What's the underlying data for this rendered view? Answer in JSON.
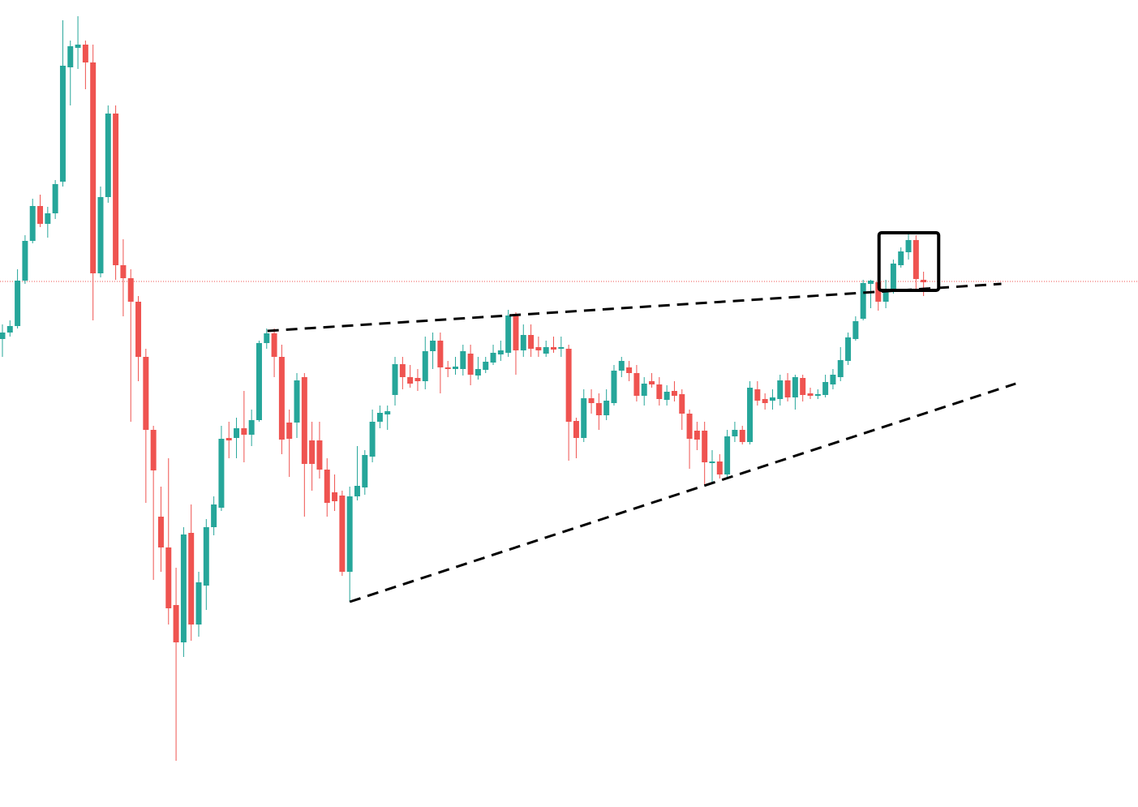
{
  "chart_data": {
    "type": "candlestick",
    "up_color": "#26a69a",
    "down_color": "#ef5350",
    "xlim": [
      -0.32,
      150.4
    ],
    "ylim": [
      0,
      995
    ],
    "open": [
      577,
      585,
      593,
      649,
      698,
      741,
      719,
      732,
      771,
      912,
      936,
      940,
      918,
      658,
      752,
      855,
      668,
      652,
      623,
      555,
      465,
      358,
      320,
      249,
      203,
      338,
      225,
      273,
      345,
      369,
      455,
      455,
      467,
      459,
      477,
      572,
      584,
      555,
      474,
      474,
      530,
      452,
      452,
      416,
      388,
      384,
      290,
      383,
      394,
      432,
      475,
      484,
      508,
      546,
      530,
      529,
      525,
      562,
      575,
      542,
      540,
      540,
      559,
      532,
      539,
      548,
      558,
      560,
      606,
      563,
      582,
      567,
      559,
      567,
      565,
      565,
      476,
      455,
      504,
      498,
      483,
      498,
      538,
      542,
      535,
      507,
      525,
      521,
      502,
      513,
      509,
      485,
      464,
      464,
      424,
      426,
      410,
      457,
      465,
      450,
      515,
      503,
      501,
      503,
      526,
      505,
      529,
      510,
      507,
      508,
      521,
      530,
      550,
      577,
      602,
      645,
      647,
      623,
      636,
      668,
      684,
      699,
      650
    ],
    "high": [
      595,
      600,
      663,
      705,
      750,
      755,
      740,
      773,
      970,
      945,
      975,
      945,
      940,
      765,
      865,
      865,
      700,
      663,
      630,
      565,
      470,
      395,
      430,
      295,
      345,
      373,
      290,
      355,
      383,
      470,
      475,
      480,
      513,
      490,
      575,
      590,
      590,
      570,
      490,
      535,
      535,
      475,
      475,
      430,
      410,
      390,
      395,
      445,
      440,
      490,
      495,
      495,
      555,
      555,
      545,
      540,
      580,
      585,
      585,
      550,
      555,
      570,
      570,
      555,
      555,
      570,
      575,
      613,
      610,
      595,
      595,
      580,
      575,
      580,
      580,
      570,
      480,
      515,
      515,
      510,
      515,
      545,
      555,
      550,
      545,
      530,
      535,
      530,
      520,
      525,
      515,
      490,
      475,
      475,
      440,
      435,
      465,
      475,
      470,
      525,
      525,
      510,
      515,
      533,
      535,
      533,
      533,
      517,
      515,
      533,
      540,
      567,
      585,
      605,
      650,
      650,
      653,
      650,
      675,
      690,
      707,
      705,
      660
    ],
    "low": [
      555,
      580,
      590,
      645,
      695,
      715,
      702,
      725,
      765,
      865,
      910,
      885,
      600,
      653,
      745,
      650,
      605,
      475,
      525,
      375,
      280,
      290,
      225,
      57,
      185,
      205,
      210,
      243,
      335,
      365,
      430,
      430,
      425,
      445,
      475,
      565,
      530,
      435,
      407,
      455,
      358,
      390,
      405,
      358,
      365,
      285,
      253,
      378,
      385,
      425,
      467,
      465,
      495,
      515,
      517,
      513,
      515,
      540,
      510,
      530,
      533,
      532,
      520,
      527,
      535,
      545,
      550,
      555,
      533,
      555,
      555,
      555,
      555,
      560,
      555,
      427,
      430,
      450,
      485,
      465,
      477,
      495,
      530,
      525,
      500,
      495,
      517,
      495,
      495,
      500,
      465,
      417,
      440,
      397,
      400,
      405,
      405,
      450,
      447,
      447,
      495,
      490,
      490,
      495,
      500,
      490,
      500,
      503,
      503,
      505,
      515,
      525,
      545,
      575,
      600,
      615,
      612,
      615,
      633,
      665,
      675,
      635,
      630
    ],
    "close": [
      585,
      593,
      649,
      698,
      741,
      719,
      732,
      768,
      914,
      938,
      940,
      918,
      658,
      752,
      855,
      668,
      652,
      623,
      555,
      465,
      415,
      320,
      245,
      203,
      336,
      225,
      277,
      345,
      373,
      454,
      452,
      467,
      459,
      477,
      572,
      584,
      555,
      453,
      454,
      526,
      423,
      423,
      416,
      375,
      377,
      290,
      383,
      396,
      434,
      475,
      486,
      488,
      546,
      530,
      522,
      525,
      562,
      575,
      542,
      540,
      543,
      562,
      533,
      540,
      549,
      560,
      563,
      606,
      563,
      582,
      565,
      563,
      567,
      564,
      567,
      475,
      455,
      504,
      498,
      483,
      501,
      538,
      550,
      535,
      507,
      522,
      521,
      503,
      512,
      507,
      485,
      454,
      453,
      425,
      426,
      410,
      457,
      465,
      450,
      517,
      501,
      498,
      505,
      526,
      505,
      530,
      508,
      507,
      509,
      524,
      533,
      551,
      579,
      599,
      646,
      649,
      623,
      637,
      670,
      685,
      699,
      651,
      647
    ],
    "price_line": {
      "value": 648,
      "color": "#ef5350"
    },
    "trendlines": [
      {
        "x": [
          35.1,
          132.3
        ],
        "y": [
          587,
          645
        ]
      },
      {
        "x": [
          46,
          134.2
        ],
        "y": [
          253,
          522
        ]
      }
    ],
    "box": {
      "x": [
        116.1,
        124
      ],
      "y": [
        637,
        708
      ]
    }
  }
}
